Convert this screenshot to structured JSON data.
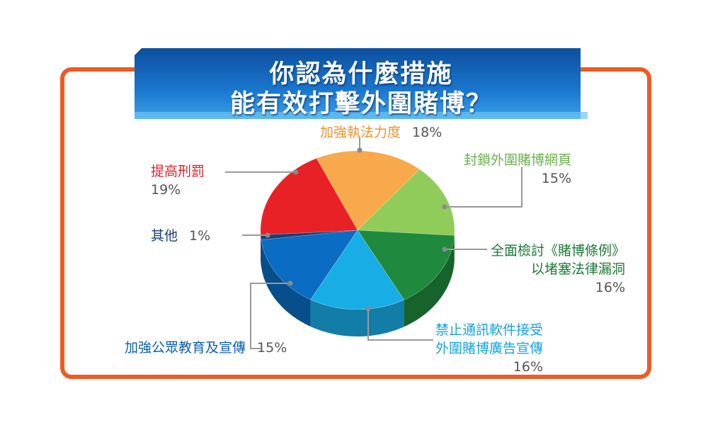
{
  "title": {
    "line1": "你認為什麼措施",
    "line2": "能有效打擊外圍賭博？"
  },
  "colors": {
    "frame": "#ee5a24",
    "banner": "#1a6fc4"
  },
  "chart_data": {
    "type": "pie",
    "title": "你認為什麼措施能有效打擊外圍賭博？",
    "slices": [
      {
        "label": "加強執法力度",
        "value": 18,
        "value_label": "18%",
        "color": "#f7a94b",
        "text_color": "#f2922a"
      },
      {
        "label": "封鎖外圍賭博網頁",
        "value": 15,
        "value_label": "15%",
        "color": "#8fcc5a",
        "text_color": "#6ab04c"
      },
      {
        "label": "全面檢討《賭博條例》以堵塞法律漏洞",
        "lines": [
          "全面檢討《賭博條例》",
          "以堵塞法律漏洞"
        ],
        "value": 16,
        "value_label": "16%",
        "color": "#1f8a3d",
        "text_color": "#1a7a34"
      },
      {
        "label": "禁止通訊軟件接受外圍賭博廣告宣傳",
        "lines": [
          "禁止通訊軟件接受",
          "外圍賭博廣告宣傳"
        ],
        "value": 16,
        "value_label": "16%",
        "color": "#19ade6",
        "text_color": "#16a3dd"
      },
      {
        "label": "加強公眾教育及宣傳",
        "value": 15,
        "value_label": "15%",
        "color": "#0a6cc2",
        "text_color": "#0a5fb0"
      },
      {
        "label": "其他",
        "value": 1,
        "value_label": "1%",
        "color": "#1b3f7a",
        "text_color": "#1b3f7a"
      },
      {
        "label": "提高刑罰",
        "value": 19,
        "value_label": "19%",
        "color": "#e82127",
        "text_color": "#e11d2a"
      }
    ]
  }
}
